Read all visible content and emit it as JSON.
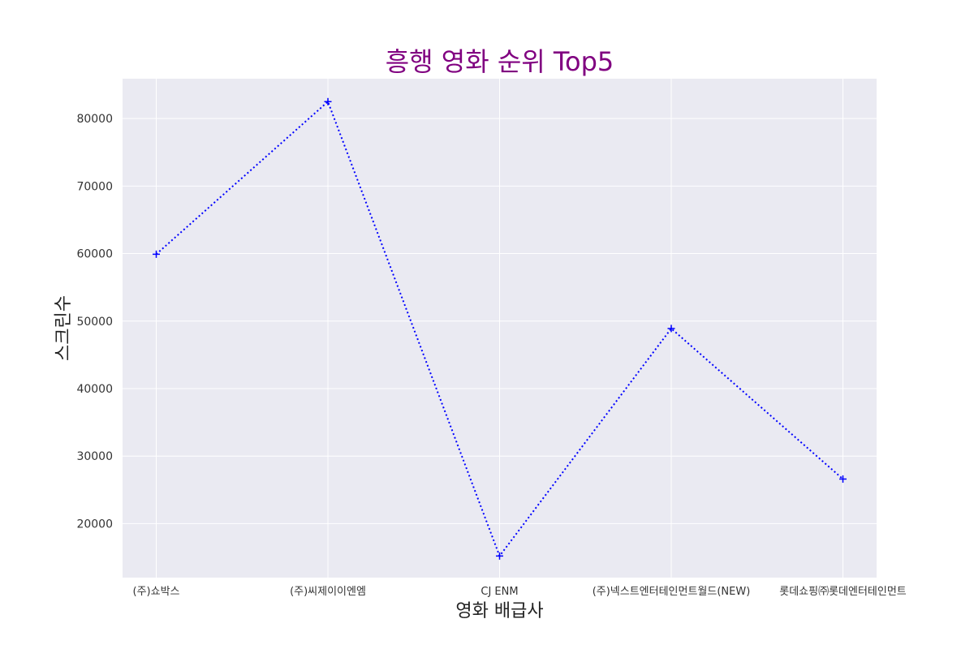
{
  "chart_data": {
    "type": "line",
    "title": "흥행 영화 순위 Top5",
    "title_color": "#800080",
    "xlabel": "영화 배급사",
    "ylabel": "스크린수",
    "categories": [
      "(주)쇼박스",
      "(주)씨제이이엔엠",
      "CJ ENM",
      "(주)넥스트엔터테인먼트월드(NEW)",
      "롯데쇼핑㈜롯데엔터테인먼트"
    ],
    "series": [
      {
        "values": [
          59900,
          82500,
          15200,
          48900,
          26600
        ],
        "color": "#0000ff",
        "line_style": "dotted",
        "marker": "+"
      }
    ],
    "ylim": [
      12000,
      85900
    ],
    "yticks": [
      20000,
      30000,
      40000,
      50000,
      60000,
      70000,
      80000
    ],
    "ytick_labels": [
      "20000",
      "30000",
      "40000",
      "50000",
      "60000",
      "70000",
      "80000"
    ],
    "grid": true,
    "plot_background": "#eaeaf2",
    "grid_color": "#ffffff",
    "style": "seaborn"
  }
}
